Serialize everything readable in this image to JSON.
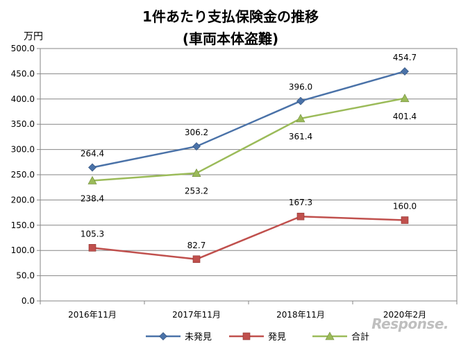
{
  "chart_data": {
    "type": "line",
    "title_line1": "1件あたり支払保険金の推移",
    "title_line2": "(車両本体盗難)",
    "ylabel": "万円",
    "ylim": [
      0,
      500
    ],
    "yticks": [
      "0.0",
      "50.0",
      "100.0",
      "150.0",
      "200.0",
      "250.0",
      "300.0",
      "350.0",
      "400.0",
      "450.0",
      "500.0"
    ],
    "categories": [
      "2016年11月",
      "2017年11月",
      "2018年11月",
      "2020年2月"
    ],
    "grid": true,
    "legend_position": "bottom",
    "series": [
      {
        "name": "未発見",
        "values": [
          264.4,
          306.2,
          396.0,
          454.7
        ],
        "labels": [
          "264.4",
          "306.2",
          "396.0",
          "454.7"
        ],
        "color": "#4a72a8",
        "marker": "diamond",
        "label_pos": "above"
      },
      {
        "name": "発見",
        "values": [
          105.3,
          82.7,
          167.3,
          160.0
        ],
        "labels": [
          "105.3",
          "82.7",
          "167.3",
          "160.0"
        ],
        "color": "#c0504d",
        "marker": "square",
        "label_pos": "above"
      },
      {
        "name": "合計",
        "values": [
          238.4,
          253.2,
          361.4,
          401.4
        ],
        "labels": [
          "238.4",
          "253.2",
          "361.4",
          "401.4"
        ],
        "color": "#9bbb59",
        "marker": "triangle",
        "label_pos": "below"
      }
    ]
  },
  "watermark": "Response."
}
